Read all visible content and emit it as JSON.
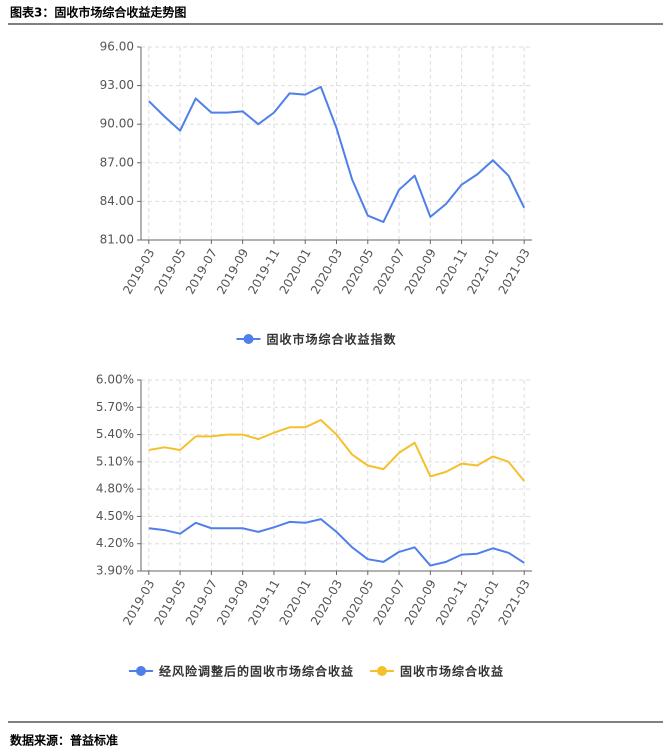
{
  "header": {
    "title": "图表3：固收市场综合收益走势图"
  },
  "footer": {
    "source": "数据来源：普益标准"
  },
  "chart_data": [
    {
      "type": "line",
      "categories": [
        "2019-03",
        null,
        "2019-05",
        null,
        "2019-07",
        null,
        "2019-09",
        null,
        "2019-11",
        null,
        "2020-01",
        null,
        "2020-03",
        null,
        "2020-05",
        null,
        "2020-07",
        null,
        "2020-09",
        null,
        "2020-11",
        null,
        "2021-01",
        null,
        "2021-03"
      ],
      "ylim": [
        81,
        96
      ],
      "yticks": [
        {
          "value": 81,
          "label": "81.00"
        },
        {
          "value": 84,
          "label": "84.00"
        },
        {
          "value": 87,
          "label": "87.00"
        },
        {
          "value": 90,
          "label": "90.00"
        },
        {
          "value": 93,
          "label": "93.00"
        },
        {
          "value": 96,
          "label": "96.00"
        }
      ],
      "grid": true,
      "legend": "bottom",
      "series": [
        {
          "name": "固收市场综合收益指数",
          "color": "#4f7fe8",
          "values": [
            91.8,
            90.6,
            89.5,
            92.0,
            90.9,
            90.9,
            91.0,
            90.0,
            90.9,
            92.4,
            92.3,
            92.9,
            89.7,
            85.7,
            82.9,
            82.4,
            84.9,
            86.0,
            82.8,
            83.8,
            85.3,
            86.1,
            87.2,
            86.0,
            83.5
          ]
        }
      ]
    },
    {
      "type": "line",
      "categories": [
        "2019-03",
        null,
        "2019-05",
        null,
        "2019-07",
        null,
        "2019-09",
        null,
        "2019-11",
        null,
        "2020-01",
        null,
        "2020-03",
        null,
        "2020-05",
        null,
        "2020-07",
        null,
        "2020-09",
        null,
        "2020-11",
        null,
        "2021-01",
        null,
        "2021-03"
      ],
      "ylim": [
        3.9,
        6.0
      ],
      "yticks": [
        {
          "value": 3.9,
          "label": "3.90%"
        },
        {
          "value": 4.2,
          "label": "4.20%"
        },
        {
          "value": 4.5,
          "label": "4.50%"
        },
        {
          "value": 4.8,
          "label": "4.80%"
        },
        {
          "value": 5.1,
          "label": "5.10%"
        },
        {
          "value": 5.4,
          "label": "5.40%"
        },
        {
          "value": 5.7,
          "label": "5.70%"
        },
        {
          "value": 6.0,
          "label": "6.00%"
        }
      ],
      "grid": true,
      "legend": "bottom",
      "series": [
        {
          "name": "经风险调整后的固收市场综合收益",
          "color": "#4f7fe8",
          "values": [
            4.37,
            4.35,
            4.31,
            4.43,
            4.37,
            4.37,
            4.37,
            4.33,
            4.38,
            4.44,
            4.43,
            4.47,
            4.33,
            4.16,
            4.03,
            4.0,
            4.11,
            4.16,
            3.96,
            4.0,
            4.08,
            4.09,
            4.15,
            4.1,
            3.99
          ]
        },
        {
          "name": "固收市场综合收益",
          "color": "#f5c02c",
          "values": [
            5.23,
            5.26,
            5.23,
            5.38,
            5.38,
            5.4,
            5.4,
            5.35,
            5.42,
            5.48,
            5.48,
            5.56,
            5.4,
            5.18,
            5.06,
            5.02,
            5.2,
            5.31,
            4.94,
            4.99,
            5.08,
            5.06,
            5.16,
            5.1,
            4.89
          ]
        }
      ]
    }
  ]
}
